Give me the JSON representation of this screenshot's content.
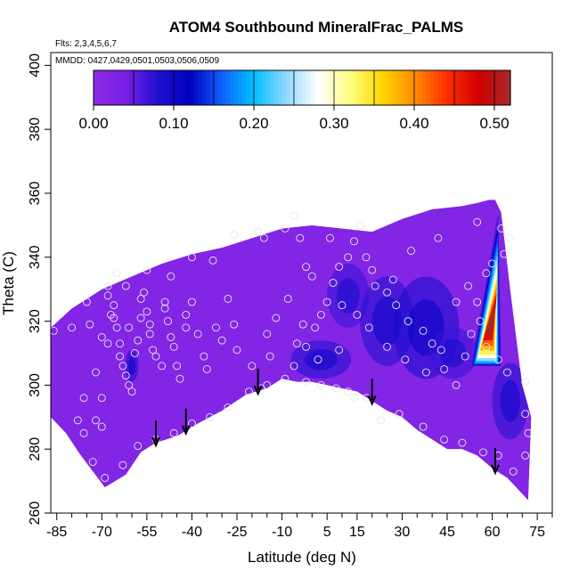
{
  "chart_data": {
    "type": "heatmap",
    "title": "ATOM4 Southbound MineralFrac_PALMS",
    "subtitle_lines": [
      "Flts: 2,3,4,5,6,7",
      "MMDD: 0427,0429,0501,0503,0506,0509"
    ],
    "xlabel": "Latitude (deg N)",
    "ylabel": "Theta (C)",
    "xlim": [
      -87,
      80
    ],
    "ylim": [
      260,
      404
    ],
    "x_ticks": [
      -85,
      -70,
      -55,
      -40,
      -25,
      -10,
      5,
      15,
      30,
      45,
      60,
      75
    ],
    "x_minor_step": 5,
    "y_ticks": [
      260,
      280,
      300,
      320,
      340,
      360,
      380,
      400
    ],
    "colorbar": {
      "range": [
        0,
        0.52
      ],
      "ticks": [
        "0.00",
        "0.10",
        "0.20",
        "0.30",
        "0.40",
        "0.50"
      ],
      "tick_values": [
        0,
        0.1,
        0.2,
        0.3,
        0.4,
        0.5
      ],
      "divisions": [
        0.05,
        0.1,
        0.15,
        0.2,
        0.25,
        0.3,
        0.35,
        0.4,
        0.45,
        0.5
      ],
      "colors": [
        "#8a2be2",
        "#7a1ee6",
        "#2010d0",
        "#0000c0",
        "#1060ff",
        "#00bfff",
        "#8fd8ff",
        "#ffffff",
        "#ffff80",
        "#ffd700",
        "#ff8c00",
        "#ff3000",
        "#d00000",
        "#a52a2a"
      ]
    },
    "domain_top": [
      [
        -87,
        318
      ],
      [
        -80,
        324
      ],
      [
        -70,
        330
      ],
      [
        -60,
        334
      ],
      [
        -50,
        338
      ],
      [
        -40,
        341
      ],
      [
        -30,
        343
      ],
      [
        -20,
        346
      ],
      [
        -10,
        349
      ],
      [
        0,
        350
      ],
      [
        10,
        349
      ],
      [
        20,
        348
      ],
      [
        30,
        352
      ],
      [
        40,
        355
      ],
      [
        50,
        356
      ],
      [
        55,
        357
      ],
      [
        59,
        358
      ],
      [
        61,
        358
      ],
      [
        63,
        354
      ],
      [
        66,
        330
      ],
      [
        70,
        300
      ],
      [
        73,
        290
      ]
    ],
    "domain_bottom": [
      [
        -87,
        290
      ],
      [
        -82,
        285
      ],
      [
        -77,
        278
      ],
      [
        -73,
        273
      ],
      [
        -69,
        268
      ],
      [
        -62,
        272
      ],
      [
        -57,
        279
      ],
      [
        -52,
        282
      ],
      [
        -45,
        284
      ],
      [
        -38,
        288
      ],
      [
        -30,
        292
      ],
      [
        -22,
        297
      ],
      [
        -15,
        299
      ],
      [
        -10,
        302
      ],
      [
        -5,
        301
      ],
      [
        0,
        301
      ],
      [
        5,
        300
      ],
      [
        10,
        299
      ],
      [
        15,
        298
      ],
      [
        20,
        295
      ],
      [
        25,
        292
      ],
      [
        30,
        290
      ],
      [
        35,
        286
      ],
      [
        40,
        283
      ],
      [
        45,
        280
      ],
      [
        50,
        280
      ],
      [
        55,
        278
      ],
      [
        60,
        274
      ],
      [
        65,
        271
      ],
      [
        70,
        266
      ],
      [
        72,
        264
      ],
      [
        73,
        290
      ]
    ],
    "dark_features": [
      {
        "lat": -60,
        "theta": 306,
        "rx": 2.2,
        "ry": 5,
        "level": 0.09
      },
      {
        "lat": 12,
        "theta": 328,
        "rx": 7,
        "ry": 10,
        "level": 0.07
      },
      {
        "lat": 3,
        "theta": 308,
        "rx": 10,
        "ry": 6,
        "level": 0.08
      },
      {
        "lat": 25,
        "theta": 320,
        "rx": 9,
        "ry": 14,
        "level": 0.08
      },
      {
        "lat": 38,
        "theta": 318,
        "rx": 11,
        "ry": 16,
        "level": 0.09
      },
      {
        "lat": 47,
        "theta": 310,
        "rx": 8,
        "ry": 8,
        "level": 0.07
      },
      {
        "lat": 66,
        "theta": 295,
        "rx": 6,
        "ry": 12,
        "level": 0.08
      }
    ],
    "hot_plume": {
      "tip_lat": 62,
      "tip_theta": 354,
      "base_lat_left": 53,
      "base_lat_right": 63,
      "base_theta": 306,
      "peak": 0.5
    },
    "observations": [
      [
        -86,
        317
      ],
      [
        -80,
        318
      ],
      [
        -78,
        289
      ],
      [
        -76,
        285
      ],
      [
        -72,
        289
      ],
      [
        -70,
        287
      ],
      [
        -68,
        331
      ],
      [
        -68,
        328
      ],
      [
        -67,
        322
      ],
      [
        -66,
        325
      ],
      [
        -66,
        321
      ],
      [
        -65,
        318
      ],
      [
        -64,
        313
      ],
      [
        -64,
        309
      ],
      [
        -63,
        306
      ],
      [
        -62,
        303
      ],
      [
        -61,
        300
      ],
      [
        -60,
        298
      ],
      [
        -59,
        310
      ],
      [
        -58,
        314
      ],
      [
        -57,
        321
      ],
      [
        -57,
        327
      ],
      [
        -56,
        329
      ],
      [
        -55,
        323
      ],
      [
        -54,
        316
      ],
      [
        -53,
        311
      ],
      [
        -52,
        309
      ],
      [
        -50,
        306
      ],
      [
        -49,
        326
      ],
      [
        -48,
        320
      ],
      [
        -47,
        315
      ],
      [
        -46,
        312
      ],
      [
        -45,
        306
      ],
      [
        -44,
        302
      ],
      [
        -42,
        318
      ],
      [
        -40,
        326
      ],
      [
        -38,
        316
      ],
      [
        -35,
        305
      ],
      [
        -32,
        318
      ],
      [
        -30,
        314
      ],
      [
        -28,
        327
      ],
      [
        -25,
        311
      ],
      [
        -20,
        306
      ],
      [
        -17,
        299
      ],
      [
        -15,
        316
      ],
      [
        -12,
        321
      ],
      [
        -8,
        327
      ],
      [
        -5,
        313
      ],
      [
        -3,
        319
      ],
      [
        0,
        334
      ],
      [
        -2,
        337
      ],
      [
        -4,
        346
      ],
      [
        -9,
        349
      ],
      [
        -18,
        348
      ],
      [
        -33,
        339
      ],
      [
        -47,
        334
      ],
      [
        -62,
        331
      ],
      [
        -70,
        315
      ],
      [
        -74,
        319
      ],
      [
        -72,
        304
      ],
      [
        -70,
        296
      ],
      [
        -76,
        296
      ],
      [
        -73,
        276
      ],
      [
        -69,
        271
      ],
      [
        -63,
        275
      ],
      [
        -58,
        281
      ],
      [
        -52,
        283
      ],
      [
        -46,
        285
      ],
      [
        -40,
        288
      ],
      [
        -34,
        290
      ],
      [
        -28,
        293
      ],
      [
        -21,
        298
      ],
      [
        -15,
        300
      ],
      [
        -9,
        302
      ],
      [
        -2,
        301
      ],
      [
        3,
        300
      ],
      [
        8,
        299
      ],
      [
        12,
        298
      ],
      [
        14,
        296
      ],
      [
        18,
        296
      ],
      [
        23,
        289
      ],
      [
        29,
        291
      ],
      [
        37,
        287
      ],
      [
        44,
        283
      ],
      [
        50,
        282
      ],
      [
        57,
        279
      ],
      [
        62,
        278
      ],
      [
        67,
        273
      ],
      [
        71,
        278
      ],
      [
        72,
        285
      ],
      [
        71,
        291
      ],
      [
        71,
        301
      ],
      [
        65,
        304
      ],
      [
        62,
        308
      ],
      [
        58,
        312
      ],
      [
        56,
        320
      ],
      [
        55,
        326
      ],
      [
        53,
        316
      ],
      [
        51,
        309
      ],
      [
        48,
        300
      ],
      [
        44,
        305
      ],
      [
        40,
        313
      ],
      [
        37,
        317
      ],
      [
        32,
        320
      ],
      [
        28,
        325
      ],
      [
        25,
        329
      ],
      [
        21,
        331
      ],
      [
        18,
        340
      ],
      [
        14,
        345
      ],
      [
        12,
        340
      ],
      [
        9,
        337
      ],
      [
        7,
        332
      ],
      [
        5,
        326
      ],
      [
        3,
        322
      ],
      [
        1,
        318
      ],
      [
        -2,
        312
      ],
      [
        10,
        325
      ],
      [
        15,
        322
      ],
      [
        19,
        318
      ],
      [
        25,
        312
      ],
      [
        31,
        308
      ],
      [
        38,
        304
      ],
      [
        43,
        311
      ],
      [
        48,
        326
      ],
      [
        52,
        331
      ],
      [
        58,
        335
      ],
      [
        60,
        338
      ],
      [
        64,
        341
      ],
      [
        66,
        346
      ],
      [
        63,
        349
      ],
      [
        55,
        351
      ],
      [
        42,
        346
      ],
      [
        33,
        342
      ],
      [
        27,
        333
      ],
      [
        20,
        336
      ],
      [
        16,
        350
      ],
      [
        6,
        346
      ],
      [
        -6,
        353
      ],
      [
        -16,
        346
      ],
      [
        -26,
        347
      ],
      [
        -40,
        340
      ],
      [
        -55,
        336
      ],
      [
        -65,
        335
      ],
      [
        -75,
        326
      ],
      [
        -68,
        313
      ],
      [
        -61,
        318
      ],
      [
        -54,
        319
      ],
      [
        -49,
        324
      ],
      [
        -42,
        322
      ],
      [
        -36,
        309
      ],
      [
        -26,
        319
      ],
      [
        -14,
        309
      ],
      [
        -6,
        306
      ],
      [
        2,
        308
      ],
      [
        9,
        311
      ]
    ]
  }
}
